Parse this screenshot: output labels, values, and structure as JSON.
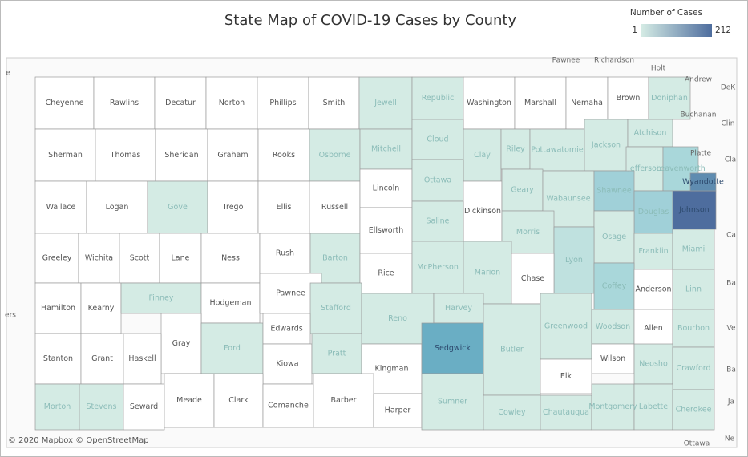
{
  "title": "State Map of COVID-19 Cases by County",
  "legend": {
    "title": "Number of Cases",
    "min": 1,
    "max": 212,
    "colors": [
      "#d4ebe4",
      "#4e6d9e"
    ]
  },
  "attribution": "© 2020 Mapbox © OpenStreetMap",
  "counties": [
    {
      "name": "Cheyenne",
      "color": "#ffffff"
    },
    {
      "name": "Rawlins",
      "color": "#ffffff"
    },
    {
      "name": "Decatur",
      "color": "#ffffff"
    },
    {
      "name": "Norton",
      "color": "#ffffff"
    },
    {
      "name": "Phillips",
      "color": "#ffffff"
    },
    {
      "name": "Smith",
      "color": "#ffffff"
    },
    {
      "name": "Jewell",
      "color": "#d4ebe4"
    },
    {
      "name": "Republic",
      "color": "#d4ebe4"
    },
    {
      "name": "Washington",
      "color": "#ffffff"
    },
    {
      "name": "Marshall",
      "color": "#ffffff"
    },
    {
      "name": "Nemaha",
      "color": "#ffffff"
    },
    {
      "name": "Brown",
      "color": "#ffffff"
    },
    {
      "name": "Doniphan",
      "color": "#d4ebe4"
    },
    {
      "name": "Sherman",
      "color": "#ffffff"
    },
    {
      "name": "Thomas",
      "color": "#ffffff"
    },
    {
      "name": "Sheridan",
      "color": "#ffffff"
    },
    {
      "name": "Graham",
      "color": "#ffffff"
    },
    {
      "name": "Rooks",
      "color": "#ffffff"
    },
    {
      "name": "Osborne",
      "color": "#d4ebe4"
    },
    {
      "name": "Mitchell",
      "color": "#d4ebe4"
    },
    {
      "name": "Cloud",
      "color": "#d4ebe4"
    },
    {
      "name": "Clay",
      "color": "#d4ebe4"
    },
    {
      "name": "Riley",
      "color": "#d4ebe4"
    },
    {
      "name": "Pottawatomie",
      "color": "#d4ebe4"
    },
    {
      "name": "Jackson",
      "color": "#d4ebe4"
    },
    {
      "name": "Atchison",
      "color": "#d4ebe4"
    },
    {
      "name": "Jefferson",
      "color": "#d4ebe4"
    },
    {
      "name": "Leavenworth",
      "color": "#a9d7da"
    },
    {
      "name": "Wallace",
      "color": "#ffffff"
    },
    {
      "name": "Logan",
      "color": "#ffffff"
    },
    {
      "name": "Gove",
      "color": "#d4ebe4"
    },
    {
      "name": "Trego",
      "color": "#ffffff"
    },
    {
      "name": "Ellis",
      "color": "#ffffff"
    },
    {
      "name": "Russell",
      "color": "#ffffff"
    },
    {
      "name": "Lincoln",
      "color": "#ffffff"
    },
    {
      "name": "Ottawa",
      "color": "#d4ebe4"
    },
    {
      "name": "Dickinson",
      "color": "#ffffff"
    },
    {
      "name": "Geary",
      "color": "#d4ebe4"
    },
    {
      "name": "Wabaunsee",
      "color": "#d4ebe4"
    },
    {
      "name": "Shawnee",
      "color": "#a0d0d8"
    },
    {
      "name": "Douglas",
      "color": "#a0d0d8"
    },
    {
      "name": "Johnson",
      "color": "#4e6d9e"
    },
    {
      "name": "Wyandotte",
      "color": "#5f8cb0"
    },
    {
      "name": "Greeley",
      "color": "#ffffff"
    },
    {
      "name": "Wichita",
      "color": "#ffffff"
    },
    {
      "name": "Scott",
      "color": "#ffffff"
    },
    {
      "name": "Lane",
      "color": "#ffffff"
    },
    {
      "name": "Ness",
      "color": "#ffffff"
    },
    {
      "name": "Rush",
      "color": "#ffffff"
    },
    {
      "name": "Barton",
      "color": "#d4ebe4"
    },
    {
      "name": "Ellsworth",
      "color": "#ffffff"
    },
    {
      "name": "Saline",
      "color": "#d4ebe4"
    },
    {
      "name": "Morris",
      "color": "#d4ebe4"
    },
    {
      "name": "Osage",
      "color": "#d4ebe4"
    },
    {
      "name": "Franklin",
      "color": "#d4ebe4"
    },
    {
      "name": "Miami",
      "color": "#d4ebe4"
    },
    {
      "name": "Lyon",
      "color": "#bfe1df"
    },
    {
      "name": "Rice",
      "color": "#ffffff"
    },
    {
      "name": "McPherson",
      "color": "#d4ebe4"
    },
    {
      "name": "Marion",
      "color": "#d4ebe4"
    },
    {
      "name": "Chase",
      "color": "#ffffff"
    },
    {
      "name": "Coffey",
      "color": "#a9d7da"
    },
    {
      "name": "Anderson",
      "color": "#ffffff"
    },
    {
      "name": "Linn",
      "color": "#d4ebe4"
    },
    {
      "name": "Hamilton",
      "color": "#ffffff"
    },
    {
      "name": "Kearny",
      "color": "#ffffff"
    },
    {
      "name": "Finney",
      "color": "#d4ebe4"
    },
    {
      "name": "Hodgeman",
      "color": "#ffffff"
    },
    {
      "name": "Pawnee",
      "color": "#ffffff"
    },
    {
      "name": "Stafford",
      "color": "#d4ebe4"
    },
    {
      "name": "Reno",
      "color": "#d4ebe4"
    },
    {
      "name": "Harvey",
      "color": "#d4ebe4"
    },
    {
      "name": "Butler",
      "color": "#d4ebe4"
    },
    {
      "name": "Greenwood",
      "color": "#d4ebe4"
    },
    {
      "name": "Woodson",
      "color": "#d4ebe4"
    },
    {
      "name": "Allen",
      "color": "#ffffff"
    },
    {
      "name": "Bourbon",
      "color": "#d4ebe4"
    },
    {
      "name": "Gray",
      "color": "#ffffff"
    },
    {
      "name": "Ford",
      "color": "#d4ebe4"
    },
    {
      "name": "Edwards",
      "color": "#ffffff"
    },
    {
      "name": "Kiowa",
      "color": "#ffffff"
    },
    {
      "name": "Pratt",
      "color": "#d4ebe4"
    },
    {
      "name": "Kingman",
      "color": "#ffffff"
    },
    {
      "name": "Sedgwick",
      "color": "#6aaec4"
    },
    {
      "name": "Wilson",
      "color": "#ffffff"
    },
    {
      "name": "Neosho",
      "color": "#d4ebe4"
    },
    {
      "name": "Crawford",
      "color": "#d4ebe4"
    },
    {
      "name": "Elk",
      "color": "#ffffff"
    },
    {
      "name": "Stanton",
      "color": "#ffffff"
    },
    {
      "name": "Grant",
      "color": "#ffffff"
    },
    {
      "name": "Haskell",
      "color": "#ffffff"
    },
    {
      "name": "Morton",
      "color": "#d4ebe4"
    },
    {
      "name": "Stevens",
      "color": "#d4ebe4"
    },
    {
      "name": "Seward",
      "color": "#ffffff"
    },
    {
      "name": "Meade",
      "color": "#ffffff"
    },
    {
      "name": "Clark",
      "color": "#ffffff"
    },
    {
      "name": "Comanche",
      "color": "#ffffff"
    },
    {
      "name": "Barber",
      "color": "#ffffff"
    },
    {
      "name": "Harper",
      "color": "#ffffff"
    },
    {
      "name": "Sumner",
      "color": "#d4ebe4"
    },
    {
      "name": "Cowley",
      "color": "#d4ebe4"
    },
    {
      "name": "Chautauqua",
      "color": "#d4ebe4"
    },
    {
      "name": "Montgomery",
      "color": "#d4ebe4"
    },
    {
      "name": "Labette",
      "color": "#d4ebe4"
    },
    {
      "name": "Cherokee",
      "color": "#d4ebe4"
    }
  ],
  "neighbors": [
    "Pawnee",
    "Richardson",
    "Holt",
    "Andrew",
    "Buchanan",
    "Platte",
    "DeK",
    "Clin",
    "Cla",
    "Ca",
    "Ba",
    "Ve",
    "Ba",
    "Ja",
    "Ne",
    "Ottawa",
    "ers",
    "e"
  ]
}
